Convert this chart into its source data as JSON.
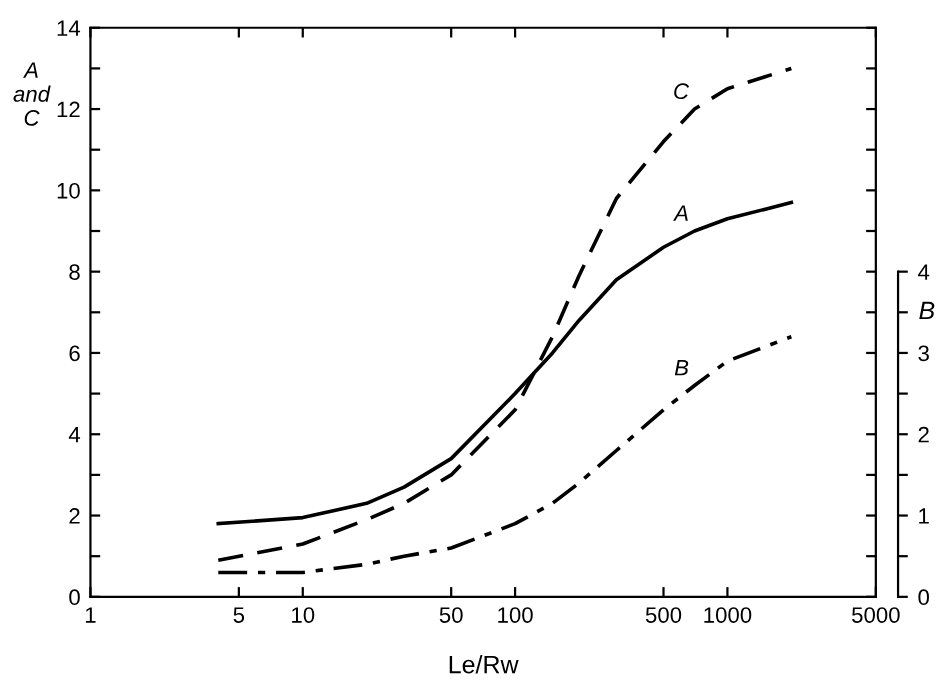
{
  "chart_data": {
    "type": "line",
    "xlabel": "Le/Rw",
    "ylabel": "A\nand\nC",
    "y2label": "B",
    "log": "x",
    "xlim": [
      1,
      5000
    ],
    "xticks": [
      1,
      5,
      10,
      50,
      100,
      500,
      1000,
      5000
    ],
    "ylim": [
      0,
      14
    ],
    "yticks": [
      0,
      {
        "value": 1,
        "label": null
      },
      2,
      {
        "value": 3,
        "label": null
      },
      4,
      {
        "value": 5,
        "label": null
      },
      6,
      {
        "value": 7,
        "label": null
      },
      8,
      {
        "value": 9,
        "label": null
      },
      10,
      {
        "value": 11,
        "label": null
      },
      12,
      {
        "value": 13,
        "label": null
      },
      14
    ],
    "y2lim": [
      0,
      7
    ],
    "y2ticks": [
      0,
      {
        "value": 0.5,
        "label": null
      },
      1,
      {
        "value": 1.5,
        "label": null
      },
      2,
      {
        "value": 2.5,
        "label": null
      },
      3,
      {
        "value": 3.5,
        "label": null
      },
      4
    ],
    "grid": false,
    "legend": false,
    "marker": "none",
    "x": [
      4,
      10,
      20,
      30,
      50,
      100,
      150,
      200,
      300,
      500,
      700,
      1000,
      2000
    ],
    "series": [
      {
        "name": "C",
        "color": "#000000",
        "line_style": "dashed",
        "values": [
          0.9,
          1.3,
          1.9,
          2.3,
          3.0,
          4.6,
          6.4,
          7.9,
          9.8,
          11.2,
          12.0,
          12.5,
          13.0
        ]
      },
      {
        "name": "A",
        "color": "#000000",
        "line_style": "solid",
        "values": [
          1.8,
          1.95,
          2.3,
          2.7,
          3.4,
          5.0,
          6.0,
          6.8,
          7.8,
          8.6,
          9.0,
          9.3,
          9.7
        ]
      },
      {
        "name": "B",
        "color": "#000000",
        "line_style": "dashdot",
        "axis": "y2",
        "values": [
          0.3,
          0.3,
          0.4,
          0.5,
          0.6,
          0.9,
          1.15,
          1.4,
          1.8,
          2.3,
          2.6,
          2.9,
          3.2
        ]
      }
    ]
  }
}
